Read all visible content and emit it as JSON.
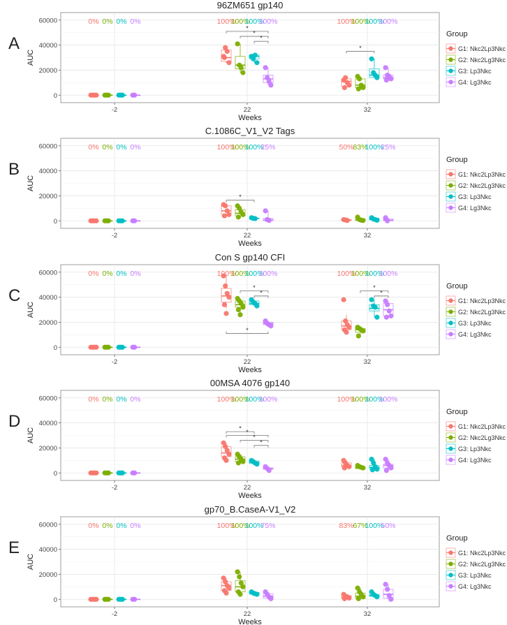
{
  "figure": {
    "legend_title": "Group",
    "groups": [
      {
        "label": "G1: Nkc2Lp3Nkc",
        "color": "#F8766D"
      },
      {
        "label": "G2: Nkc2Lg3Nkc",
        "color": "#7CAE00"
      },
      {
        "label": "G3: Lp3Nkc",
        "color": "#00BFC4"
      },
      {
        "label": "G4: Lg3Nkc",
        "color": "#C77CFF"
      }
    ]
  },
  "chart_data": [
    {
      "panel": "A",
      "type": "box",
      "title": "96ZM651 gp140",
      "xlabel": "Weeks",
      "ylabel": "AUC",
      "ylim": [
        -6000,
        66000
      ],
      "yticks": [
        0,
        20000,
        40000,
        60000
      ],
      "categories": [
        "-2",
        "22",
        "32"
      ],
      "percent_labels": [
        [
          "0%",
          "0%",
          "0%",
          "0%"
        ],
        [
          "100%",
          "100%",
          "100%",
          "100%"
        ],
        [
          "100%",
          "100%",
          "100%",
          "100%"
        ]
      ],
      "points": [
        [
          [
            0,
            0,
            0,
            0
          ],
          [
            0,
            0,
            0
          ],
          [
            0,
            0,
            0
          ],
          [
            0,
            0
          ]
        ],
        [
          [
            31000,
            38000,
            35000,
            26000,
            30000
          ],
          [
            41000,
            24000,
            22000,
            18000
          ],
          [
            31000,
            29000,
            32000,
            26000
          ],
          [
            22000,
            14000,
            11000,
            8000
          ]
        ],
        [
          [
            12000,
            14000,
            10000,
            8000,
            6000
          ],
          [
            15000,
            13000,
            8000,
            6000,
            5000
          ],
          [
            29000,
            18000,
            16000,
            14000
          ],
          [
            22000,
            16000,
            15000,
            13000,
            12000
          ]
        ]
      ],
      "boxes": [
        [
          [
            0,
            0,
            0,
            0,
            0
          ],
          [
            0,
            0,
            0,
            0,
            0
          ],
          [
            0,
            0,
            0,
            0,
            0
          ],
          [
            0,
            0,
            0,
            0,
            0
          ]
        ],
        [
          [
            26000,
            27000,
            30000,
            36000,
            38000
          ],
          [
            18000,
            21000,
            24000,
            31000,
            41000
          ],
          [
            26000,
            29000,
            31000,
            32000,
            32000
          ],
          [
            8000,
            10000,
            13000,
            16000,
            22000
          ]
        ],
        [
          [
            6000,
            7000,
            11000,
            13000,
            14000
          ],
          [
            5000,
            6000,
            8000,
            13000,
            15000
          ],
          [
            14000,
            14000,
            16000,
            21000,
            29000
          ],
          [
            12000,
            13000,
            14000,
            16000,
            22000
          ]
        ]
      ],
      "brackets": [
        {
          "week": 1,
          "from": 0,
          "to": 3,
          "y": 51000
        },
        {
          "week": 1,
          "from": 1,
          "to": 3,
          "y": 47000
        },
        {
          "week": 1,
          "from": 2,
          "to": 3,
          "y": 43000
        },
        {
          "week": 2,
          "from": 0,
          "to": 2,
          "y": 35000
        }
      ],
      "star": "*"
    },
    {
      "panel": "B",
      "type": "box",
      "title": "C.1086C_V1_V2 Tags",
      "xlabel": "Weeks",
      "ylabel": "AUC",
      "ylim": [
        -6000,
        66000
      ],
      "yticks": [
        0,
        20000,
        40000,
        60000
      ],
      "categories": [
        "-2",
        "22",
        "32"
      ],
      "percent_labels": [
        [
          "0%",
          "0%",
          "0%",
          "0%"
        ],
        [
          "100%",
          "100%",
          "100%",
          "25%"
        ],
        [
          "50%",
          "83%",
          "100%",
          "25%"
        ]
      ],
      "points": [
        [
          [
            0,
            0,
            0,
            0
          ],
          [
            0,
            0,
            0
          ],
          [
            0,
            0,
            0
          ],
          [
            0,
            0
          ]
        ],
        [
          [
            13000,
            12000,
            8000,
            5000,
            4000
          ],
          [
            12000,
            10000,
            7000,
            5000,
            3000
          ],
          [
            2500,
            2000,
            1800
          ],
          [
            8000,
            1000,
            300
          ]
        ],
        [
          [
            1000,
            700,
            300
          ],
          [
            3000,
            1000,
            500,
            300
          ],
          [
            2500,
            1500,
            1000,
            500
          ],
          [
            2500,
            0
          ]
        ]
      ],
      "boxes": [
        [
          [
            0,
            0,
            0,
            0,
            0
          ],
          [
            0,
            0,
            0,
            0,
            0
          ],
          [
            0,
            0,
            0,
            0,
            0
          ],
          [
            0,
            0,
            0,
            0,
            0
          ]
        ],
        [
          [
            4000,
            5000,
            8000,
            12000,
            13000
          ],
          [
            3000,
            4000,
            6000,
            9000,
            12000
          ],
          [
            1800,
            1900,
            2000,
            2200,
            2500
          ],
          [
            0,
            200,
            600,
            2000,
            8000
          ]
        ],
        [
          [
            0,
            300,
            600,
            1000,
            1200
          ],
          [
            0,
            300,
            700,
            1500,
            3000
          ],
          [
            500,
            800,
            1200,
            2000,
            2500
          ],
          [
            0,
            100,
            500,
            1500,
            2500
          ]
        ]
      ],
      "brackets": [
        {
          "week": 1,
          "from": 0,
          "to": 2,
          "y": 16500
        }
      ],
      "star": "*"
    },
    {
      "panel": "C",
      "type": "box",
      "title": "Con S gp140 CFI",
      "xlabel": "Weeks",
      "ylabel": "AUC",
      "ylim": [
        -6000,
        66000
      ],
      "yticks": [
        0,
        20000,
        40000,
        60000
      ],
      "categories": [
        "-2",
        "22",
        "32"
      ],
      "percent_labels": [
        [
          "0%",
          "0%",
          "0%",
          "0%"
        ],
        [
          "100%",
          "100%",
          "100%",
          "100%"
        ],
        [
          "100%",
          "100%",
          "100%",
          "100%"
        ]
      ],
      "points": [
        [
          [
            0,
            0,
            0,
            0
          ],
          [
            0,
            0,
            0
          ],
          [
            0,
            0,
            0
          ],
          [
            0,
            0
          ]
        ],
        [
          [
            57000,
            49000,
            43000,
            40000,
            34000,
            27000
          ],
          [
            39000,
            37000,
            35000,
            32000,
            30000,
            26000
          ],
          [
            38000,
            36000,
            35000,
            33000
          ],
          [
            21000,
            19000,
            18000,
            17000
          ]
        ],
        [
          [
            38000,
            21000,
            18000,
            16000,
            14000,
            12000
          ],
          [
            16000,
            15000,
            14000,
            13000,
            9000
          ],
          [
            38000,
            33000,
            32000,
            24000
          ],
          [
            37000,
            34000,
            29000,
            25000,
            24000
          ]
        ]
      ],
      "boxes": [
        [
          [
            0,
            0,
            0,
            0,
            0
          ],
          [
            0,
            0,
            0,
            0,
            0
          ],
          [
            0,
            0,
            0,
            0,
            0
          ],
          [
            0,
            0,
            0,
            0,
            0
          ]
        ],
        [
          [
            31000,
            36000,
            41000,
            47000,
            57000
          ],
          [
            26000,
            32000,
            34000,
            37000,
            39000
          ],
          [
            33000,
            34000,
            35000,
            37000,
            38000
          ],
          [
            17000,
            18000,
            19000,
            20000,
            21000
          ]
        ],
        [
          [
            12000,
            14000,
            17000,
            21000,
            26000
          ],
          [
            9000,
            12000,
            14000,
            15000,
            16000
          ],
          [
            24000,
            29000,
            31000,
            34000,
            38000
          ],
          [
            24000,
            25000,
            30000,
            35000,
            37000
          ]
        ]
      ],
      "brackets": [
        {
          "week": 1,
          "from": 1,
          "to": 3,
          "y": 45000
        },
        {
          "week": 1,
          "from": 2,
          "to": 3,
          "y": 41000
        },
        {
          "week": 1,
          "from": 0,
          "to": 3,
          "y": 11000,
          "below": true
        },
        {
          "week": 2,
          "from": 1,
          "to": 3,
          "y": 45000
        },
        {
          "week": 2,
          "from": 2,
          "to": 3,
          "y": 41000
        }
      ],
      "star": "*"
    },
    {
      "panel": "D",
      "type": "box",
      "title": "00MSA 4076 gp140",
      "xlabel": "Weeks",
      "ylabel": "AUC",
      "ylim": [
        -6000,
        66000
      ],
      "yticks": [
        0,
        20000,
        40000,
        60000
      ],
      "categories": [
        "-2",
        "22",
        "32"
      ],
      "percent_labels": [
        [
          "0%",
          "0%",
          "0%",
          "0%"
        ],
        [
          "100%",
          "100%",
          "100%",
          "100%"
        ],
        [
          "100%",
          "100%",
          "100%",
          "100%"
        ]
      ],
      "points": [
        [
          [
            0,
            0,
            0,
            0
          ],
          [
            0,
            0,
            0
          ],
          [
            0,
            0,
            0
          ],
          [
            0,
            0
          ]
        ],
        [
          [
            24000,
            21000,
            18000,
            15000,
            12000,
            10000
          ],
          [
            15000,
            13000,
            11000,
            9000,
            8000
          ],
          [
            10000,
            9000,
            8000,
            7000
          ],
          [
            5000,
            3500,
            2000
          ]
        ],
        [
          [
            10000,
            8000,
            6000,
            5000,
            4000
          ],
          [
            6000,
            5000,
            4500,
            4000
          ],
          [
            11000,
            8000,
            5000,
            3000,
            2500
          ],
          [
            11000,
            8000,
            6000,
            4000,
            2000
          ]
        ]
      ],
      "boxes": [
        [
          [
            0,
            0,
            0,
            0,
            0
          ],
          [
            0,
            0,
            0,
            0,
            0
          ],
          [
            0,
            0,
            0,
            0,
            0
          ],
          [
            0,
            0,
            0,
            0,
            0
          ]
        ],
        [
          [
            10000,
            13000,
            16000,
            21000,
            24000
          ],
          [
            8000,
            9000,
            11000,
            13000,
            15000
          ],
          [
            7000,
            7500,
            8500,
            9500,
            10000
          ],
          [
            2000,
            3000,
            3500,
            4000,
            5000
          ]
        ],
        [
          [
            4000,
            4500,
            6000,
            8000,
            10000
          ],
          [
            3000,
            3500,
            4000,
            4500,
            6000
          ],
          [
            2500,
            3000,
            4500,
            6000,
            11000
          ],
          [
            2000,
            4000,
            6000,
            7000,
            11000
          ]
        ]
      ],
      "brackets": [
        {
          "week": 1,
          "from": 0,
          "to": 2,
          "y": 33000
        },
        {
          "week": 1,
          "from": 0,
          "to": 3,
          "y": 30000
        },
        {
          "week": 1,
          "from": 1,
          "to": 3,
          "y": 26000
        },
        {
          "week": 1,
          "from": 2,
          "to": 3,
          "y": 22000
        }
      ],
      "star": "*"
    },
    {
      "panel": "E",
      "type": "box",
      "title": "gp70_B.CaseA-V1_V2",
      "xlabel": "Weeks",
      "ylabel": "AUC",
      "ylim": [
        -6000,
        66000
      ],
      "yticks": [
        0,
        20000,
        40000,
        60000
      ],
      "categories": [
        "-2",
        "22",
        "32"
      ],
      "percent_labels": [
        [
          "0%",
          "0%",
          "0%",
          "0%"
        ],
        [
          "100%",
          "100%",
          "100%",
          "75%"
        ],
        [
          "83%",
          "67%",
          "100%",
          "50%"
        ]
      ],
      "points": [
        [
          [
            0,
            0,
            0,
            0
          ],
          [
            0,
            0,
            0
          ],
          [
            0,
            0,
            0
          ],
          [
            0,
            0
          ]
        ],
        [
          [
            17000,
            14000,
            11000,
            9000,
            7000,
            5000
          ],
          [
            22000,
            18000,
            13000,
            10000,
            6000,
            4000
          ],
          [
            6000,
            5000,
            4500,
            4000
          ],
          [
            6000,
            4000,
            2000,
            500
          ]
        ],
        [
          [
            4000,
            2500,
            2000,
            1000,
            500
          ],
          [
            9000,
            6000,
            4000,
            2000,
            500
          ],
          [
            6000,
            4000,
            3000,
            2000
          ],
          [
            12000,
            8000,
            3000,
            0
          ]
        ]
      ],
      "boxes": [
        [
          [
            0,
            0,
            0,
            0,
            0
          ],
          [
            0,
            0,
            0,
            0,
            0
          ],
          [
            0,
            0,
            0,
            0,
            0
          ],
          [
            0,
            0,
            0,
            0,
            0
          ]
        ],
        [
          [
            5000,
            7000,
            11000,
            14000,
            17000
          ],
          [
            4000,
            6000,
            10000,
            15000,
            22000
          ],
          [
            4000,
            4200,
            5000,
            5500,
            6000
          ],
          [
            0,
            1000,
            2500,
            4500,
            6000
          ]
        ],
        [
          [
            0,
            800,
            1500,
            3000,
            4000
          ],
          [
            0,
            800,
            2500,
            5000,
            9000
          ],
          [
            2000,
            2500,
            3000,
            4000,
            6000
          ],
          [
            0,
            1000,
            4000,
            8000,
            12000
          ]
        ]
      ],
      "brackets": [],
      "star": "*"
    }
  ]
}
